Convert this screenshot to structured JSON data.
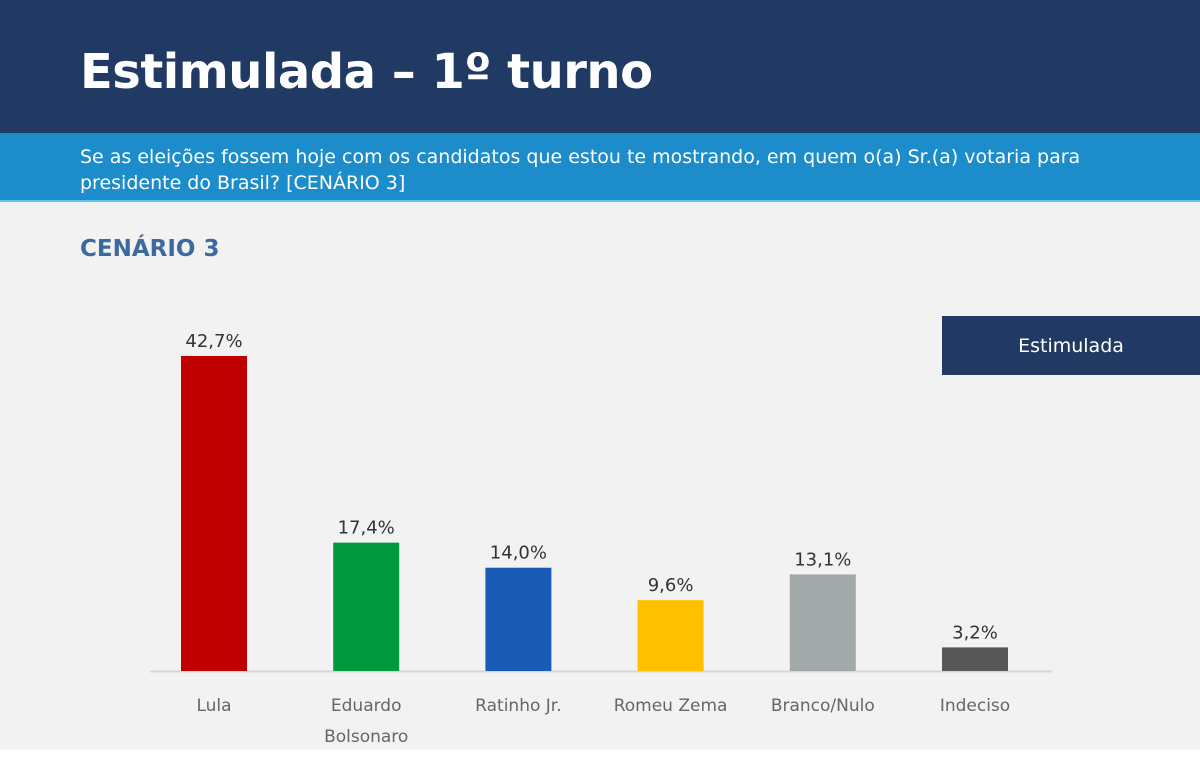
{
  "header": {
    "title": "Estimulada – 1º turno",
    "question": "Se as eleições fossem hoje com os candidatos que estou te mostrando, em quem o(a) Sr.(a) votaria para presidente do Brasil? [CENÁRIO 3]"
  },
  "chart_data": {
    "type": "bar",
    "title": "CENÁRIO 3",
    "legend": "Estimulada",
    "legend_position": "top-right",
    "grid": false,
    "categories": [
      "Lula",
      "Eduardo Bolsonaro",
      "Ratinho Jr.",
      "Romeu Zema",
      "Branco/Nulo",
      "Indeciso"
    ],
    "values": [
      42.7,
      17.4,
      14.0,
      9.6,
      13.1,
      3.2
    ],
    "labels": [
      "42,7%",
      "17,4%",
      "14,0%",
      "9,6%",
      "13,1%",
      "3,2%"
    ],
    "colors": [
      "#c00000",
      "#009a3e",
      "#1a5cb5",
      "#ffc000",
      "#a3a9a8",
      "#575757"
    ],
    "ylim": [
      0,
      45
    ]
  }
}
